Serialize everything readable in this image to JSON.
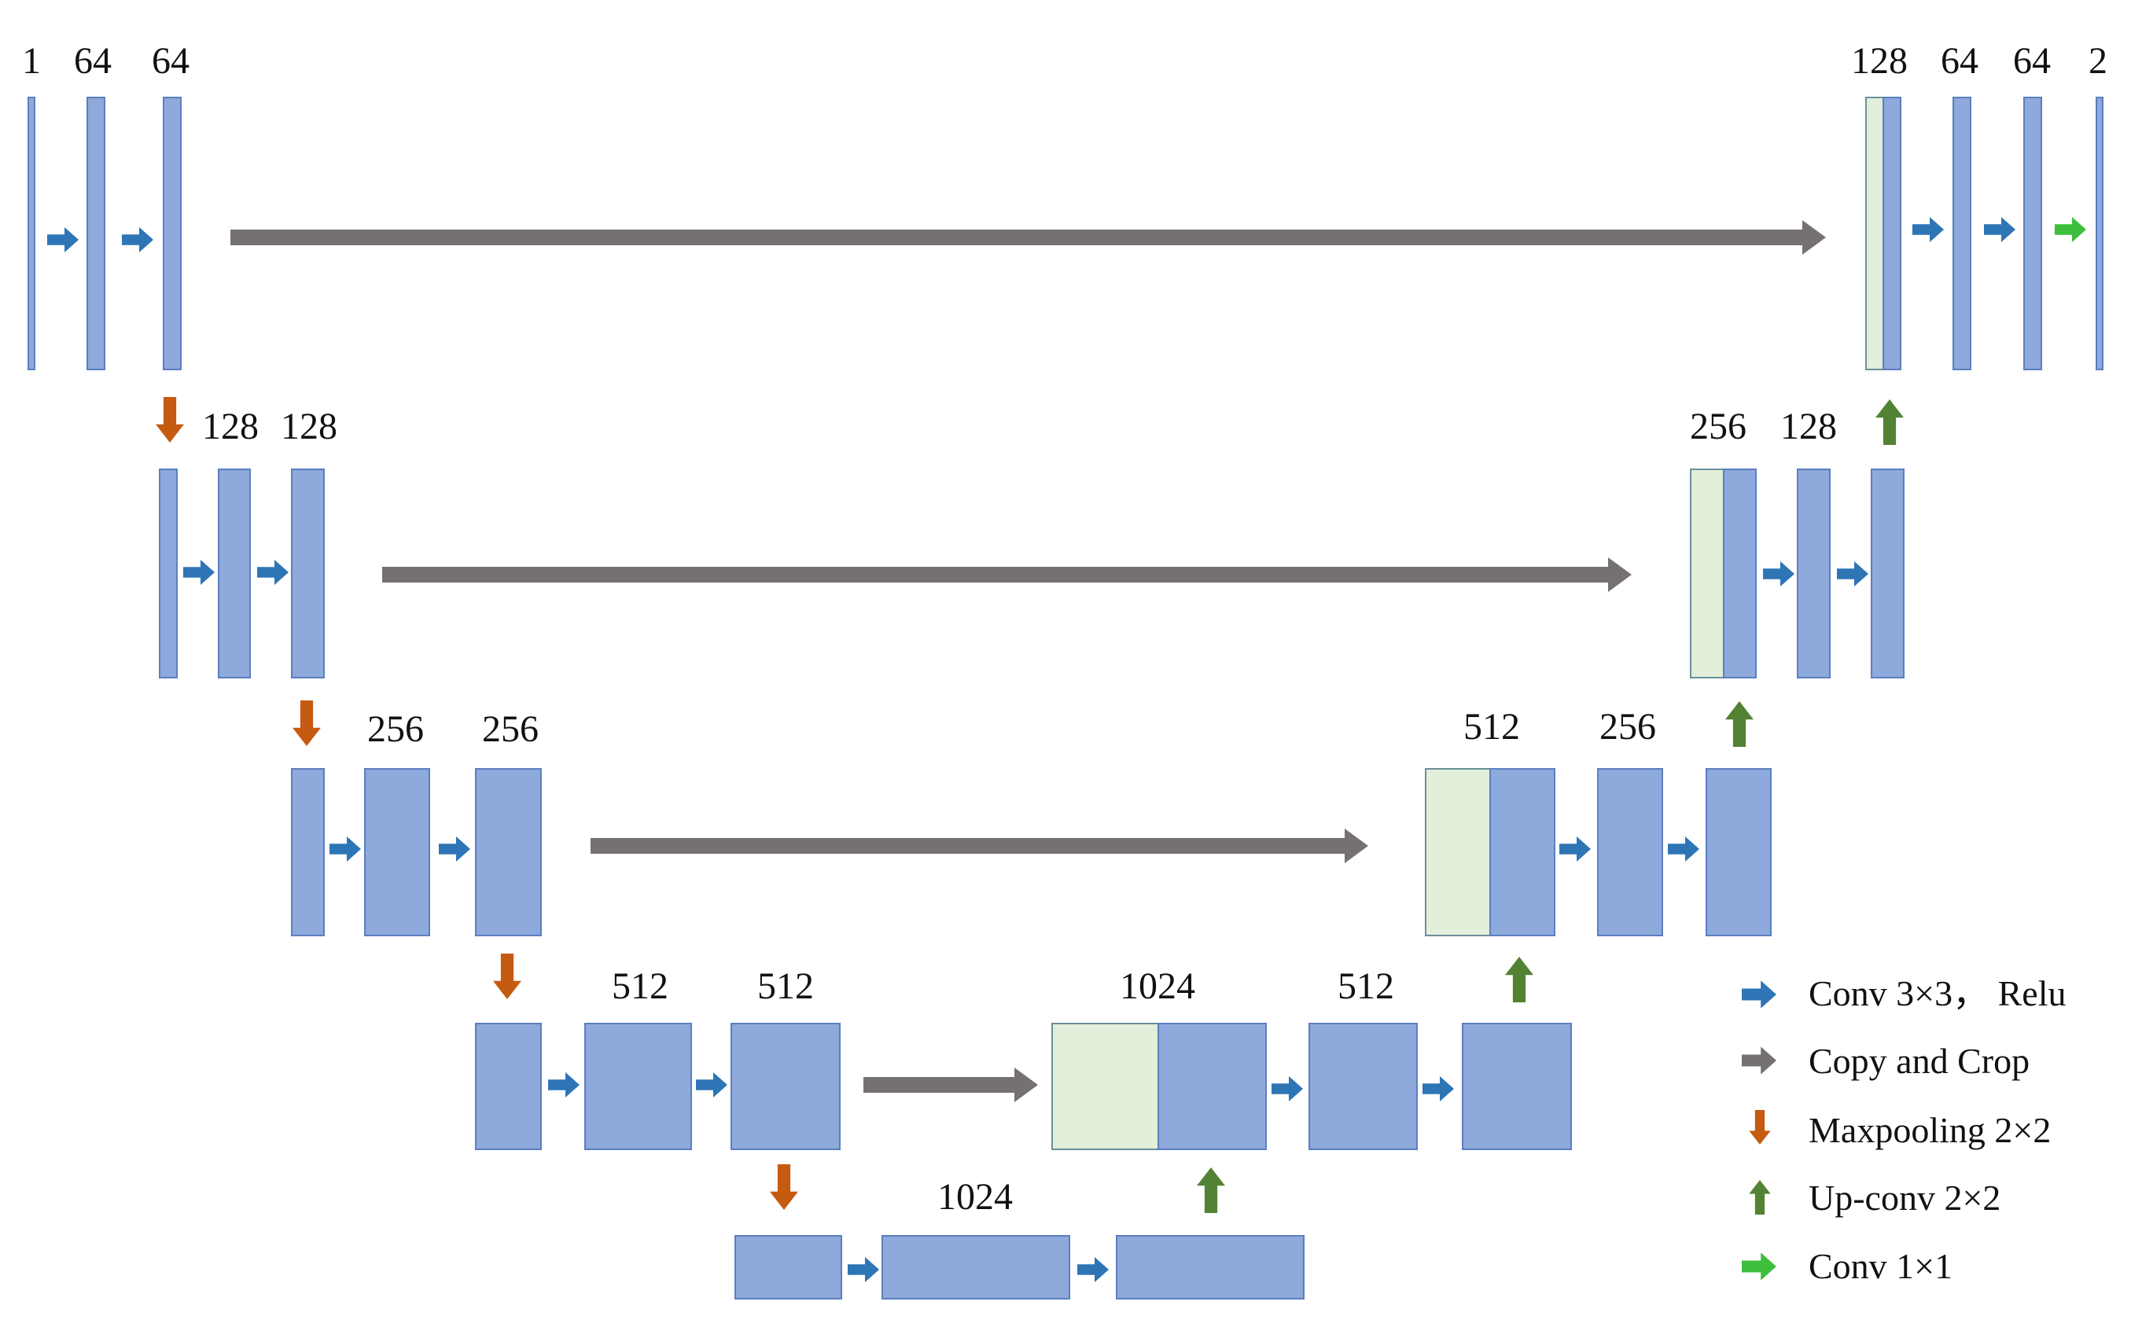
{
  "colors": {
    "block": "#8ea9db",
    "block_stroke": "#5b7fbf",
    "copy_block": "#e2efda",
    "copy_stroke": "#6a8f9c",
    "conv": "#2e75b6",
    "copy_crop": "#767171",
    "maxpool": "#c55a11",
    "upconv": "#548235",
    "conv1x1": "#3dbf3d"
  },
  "icons": {
    "conv": "blue-right-arrow-icon",
    "copy_crop": "gray-right-arrow-icon",
    "maxpool": "orange-down-arrow-icon",
    "upconv": "green-up-arrow-icon",
    "conv1x1": "green-right-arrow-icon"
  },
  "labels": {
    "enc1": [
      "1",
      "64",
      "64"
    ],
    "enc2": [
      "128",
      "128"
    ],
    "enc3": [
      "256",
      "256"
    ],
    "enc4": [
      "512",
      "512"
    ],
    "bottleneck": [
      "1024"
    ],
    "dec4": [
      "1024",
      "512"
    ],
    "dec3": [
      "512",
      "256"
    ],
    "dec2": [
      "256",
      "128"
    ],
    "dec1": [
      "128",
      "64",
      "64",
      "2"
    ]
  },
  "legend": {
    "conv": "Conv 3×3， Relu",
    "copy_crop": "Copy and Crop",
    "maxpool": "Maxpooling 2×2",
    "upconv": "Up-conv 2×2",
    "conv1x1": "Conv 1×1"
  }
}
